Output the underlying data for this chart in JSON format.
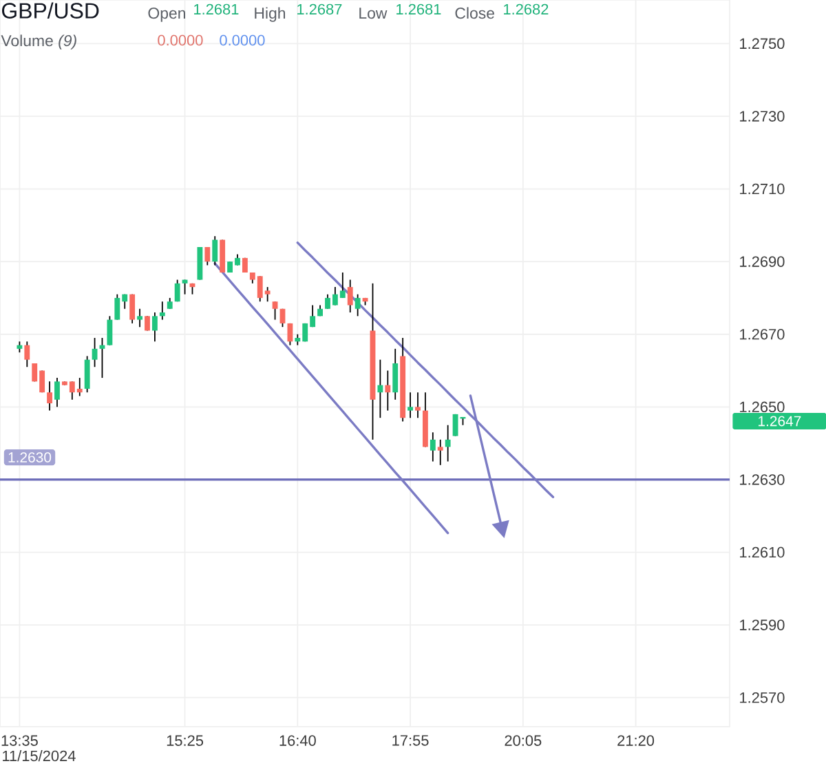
{
  "chart_data": {
    "type": "candlestick",
    "title": "GBP/USD",
    "categories": [
      "13:35",
      null,
      null,
      null,
      null,
      null,
      null,
      null,
      null,
      null,
      null,
      null,
      null,
      null,
      null,
      null,
      null,
      null,
      null,
      null,
      null,
      null,
      "15:25",
      null,
      null,
      null,
      null,
      null,
      null,
      null,
      null,
      null,
      null,
      null,
      null,
      null,
      null,
      "16:40",
      null,
      null,
      null,
      null,
      null,
      null,
      null,
      null,
      null,
      null,
      null,
      null,
      null,
      null,
      "17:55",
      null,
      null,
      null,
      null,
      null,
      null,
      null,
      null,
      null,
      null,
      null,
      null,
      null,
      null,
      "20:05",
      null,
      null,
      null,
      null,
      null,
      null,
      null,
      null,
      null,
      null,
      null,
      null,
      null,
      null,
      "21:20",
      null,
      null,
      null,
      null,
      null,
      null,
      null,
      null,
      null,
      null,
      null,
      null
    ],
    "ohlc": [
      [
        1.2666,
        1.2668,
        1.2665,
        1.2667
      ],
      [
        1.2667,
        1.2668,
        1.2661,
        1.2663
      ],
      [
        1.2662,
        1.2662,
        1.2657,
        1.2657
      ],
      [
        1.266,
        1.266,
        1.2654,
        1.2654
      ],
      [
        1.2654,
        1.2657,
        1.2649,
        1.2651
      ],
      [
        1.2652,
        1.2658,
        1.265,
        1.2657
      ],
      [
        1.2657,
        1.2657,
        1.2656,
        1.2656
      ],
      [
        1.2657,
        1.2657,
        1.2652,
        1.2654
      ],
      [
        1.2655,
        1.2658,
        1.2653,
        1.2654
      ],
      [
        1.2655,
        1.2664,
        1.2654,
        1.2663
      ],
      [
        1.2663,
        1.2669,
        1.2661,
        1.2666
      ],
      [
        1.2666,
        1.2669,
        1.2658,
        1.2667
      ],
      [
        1.2667,
        1.2675,
        1.2667,
        1.2674
      ],
      [
        1.2674,
        1.2681,
        1.2674,
        1.268
      ],
      [
        1.2679,
        1.2681,
        1.2677,
        1.2681
      ],
      [
        1.2681,
        1.2681,
        1.2673,
        1.2674
      ],
      [
        1.2674,
        1.2677,
        1.2672,
        1.2675
      ],
      [
        1.2675,
        1.2675,
        1.2671,
        1.2671
      ],
      [
        1.2671,
        1.2676,
        1.2668,
        1.2675
      ],
      [
        1.2675,
        1.2679,
        1.2674,
        1.2676
      ],
      [
        1.2677,
        1.268,
        1.2677,
        1.2679
      ],
      [
        1.2679,
        1.2685,
        1.2679,
        1.2684
      ],
      [
        1.2684,
        1.2685,
        1.2681,
        1.2685
      ],
      [
        1.2684,
        1.2684,
        1.2681,
        1.2683
      ],
      [
        1.2685,
        1.2694,
        1.2685,
        1.2694
      ],
      [
        1.2694,
        1.2694,
        1.2689,
        1.269
      ],
      [
        1.269,
        1.2697,
        1.2689,
        1.2696
      ],
      [
        1.2696,
        1.2696,
        1.2687,
        1.2687
      ],
      [
        1.2687,
        1.269,
        1.2687,
        1.269
      ],
      [
        1.2689,
        1.2692,
        1.2689,
        1.2691
      ],
      [
        1.2691,
        1.2691,
        1.2687,
        1.2687
      ],
      [
        1.2687,
        1.2687,
        1.2684,
        1.2685
      ],
      [
        1.2686,
        1.2686,
        1.2679,
        1.268
      ],
      [
        1.2682,
        1.2683,
        1.2679,
        1.2681
      ],
      [
        1.2679,
        1.2679,
        1.2674,
        1.2677
      ],
      [
        1.2677,
        1.2677,
        1.2672,
        1.2673
      ],
      [
        1.2673,
        1.2673,
        1.2667,
        1.2668
      ],
      [
        1.2668,
        1.267,
        1.2667,
        1.2669
      ],
      [
        1.2668,
        1.2673,
        1.2668,
        1.2673
      ],
      [
        1.2672,
        1.2678,
        1.2672,
        1.2675
      ],
      [
        1.2675,
        1.2678,
        1.2675,
        1.2677
      ],
      [
        1.2677,
        1.2681,
        1.2677,
        1.268
      ],
      [
        1.2678,
        1.2683,
        1.2678,
        1.2681
      ],
      [
        1.268,
        1.2687,
        1.268,
        1.2682
      ],
      [
        1.2683,
        1.2685,
        1.2676,
        1.2678
      ],
      [
        1.2677,
        1.2681,
        1.2675,
        1.268
      ],
      [
        1.268,
        1.268,
        1.2678,
        1.2679
      ],
      [
        1.2671,
        1.2684,
        1.2641,
        1.2652
      ],
      [
        1.2654,
        1.2663,
        1.2647,
        1.2656
      ],
      [
        1.2656,
        1.266,
        1.2649,
        1.2654
      ],
      [
        1.2654,
        1.2666,
        1.2652,
        1.2662
      ],
      [
        1.2664,
        1.2669,
        1.2646,
        1.2647
      ],
      [
        1.2649,
        1.2654,
        1.2647,
        1.265
      ],
      [
        1.265,
        1.2654,
        1.2647,
        1.2649
      ],
      [
        1.2649,
        1.2654,
        1.2639,
        1.2639
      ],
      [
        1.2638,
        1.2643,
        1.2635,
        1.2641
      ],
      [
        1.2639,
        1.2641,
        1.2634,
        1.2638
      ],
      [
        1.2639,
        1.2645,
        1.2635,
        1.2641
      ],
      [
        1.2642,
        1.2648,
        1.2642,
        1.2648
      ],
      [
        1.2647,
        1.2647,
        1.2645,
        1.2647
      ],
      null,
      null,
      null,
      null,
      null,
      null,
      null,
      null,
      null,
      null,
      null,
      null,
      null,
      null,
      null,
      null,
      null,
      null,
      null,
      null,
      null,
      null,
      null,
      null,
      null,
      null,
      null,
      null,
      null,
      null,
      null,
      null,
      null,
      null,
      null
    ],
    "colors": [
      "#21c47e",
      "#f86a5f",
      "#f86a5f",
      "#f86a5f",
      "#f86a5f",
      "#21c47e",
      "#f86a5f",
      "#f86a5f",
      "#f86a5f",
      "#21c47e",
      "#21c47e",
      "#21c47e",
      "#21c47e",
      "#21c47e",
      "#21c47e",
      "#f86a5f",
      "#21c47e",
      "#f86a5f",
      "#21c47e",
      "#21c47e",
      "#21c47e",
      "#21c47e",
      "#21c47e",
      "#f86a5f",
      "#21c47e",
      "#f86a5f",
      "#21c47e",
      "#f86a5f",
      "#21c47e",
      "#21c47e",
      "#f86a5f",
      "#f86a5f",
      "#f86a5f",
      "#f86a5f",
      "#f86a5f",
      "#f86a5f",
      "#f86a5f",
      "#21c47e",
      "#21c47e",
      "#21c47e",
      "#21c47e",
      "#21c47e",
      "#21c47e",
      "#21c47e",
      "#f86a5f",
      "#21c47e",
      "#f86a5f",
      "#f86a5f",
      "#21c47e",
      "#f86a5f",
      "#21c47e",
      "#f86a5f",
      "#21c47e",
      "#f86a5f",
      "#f86a5f",
      "#21c47e",
      "#f86a5f",
      "#21c47e",
      "#21c47e",
      "#21c47e",
      null,
      null,
      null,
      null,
      null,
      null,
      null,
      null,
      null,
      null,
      null,
      null,
      null,
      null,
      null,
      null,
      null,
      null,
      null,
      null,
      null,
      null,
      null,
      null,
      null,
      null,
      null,
      null,
      null,
      null,
      null,
      null,
      null,
      null,
      null
    ],
    "series": [
      {
        "type": "line",
        "color": "#7b7bc4",
        "values": [
          null,
          null,
          null,
          null,
          null,
          null,
          null,
          null,
          null,
          null,
          null,
          null,
          null,
          null,
          null,
          null,
          null,
          null,
          null,
          null,
          null,
          null,
          null,
          null,
          null,
          null,
          null,
          null,
          null,
          null,
          null,
          null,
          null,
          null,
          null,
          null,
          null,
          1.26952,
          1.26931,
          1.26911,
          1.2689,
          1.26869,
          1.26849,
          1.26828,
          1.26808,
          1.26787,
          1.26766,
          1.26746,
          1.26725,
          1.26705,
          1.26684,
          1.26664,
          1.26643,
          1.26622,
          1.26602,
          1.26581,
          1.26561,
          1.2654,
          1.26519,
          1.26499,
          1.26478,
          1.26458,
          1.26437,
          1.26416,
          1.26396,
          1.26375,
          1.26355,
          1.26334,
          1.26314,
          1.26293,
          1.26272,
          1.26252,
          null,
          null,
          null,
          null,
          null,
          null,
          null,
          null,
          null,
          null,
          null,
          null,
          null,
          null,
          null,
          null,
          null,
          null,
          null,
          null,
          null,
          null,
          null
        ]
      },
      {
        "type": "line",
        "color": "#7b7bc4",
        "values": [
          null,
          null,
          null,
          null,
          null,
          null,
          null,
          null,
          null,
          null,
          null,
          null,
          null,
          null,
          null,
          null,
          null,
          null,
          null,
          null,
          null,
          null,
          null,
          null,
          null,
          null,
          1.26895,
          1.26871,
          1.26847,
          1.26823,
          1.26799,
          1.26775,
          1.26752,
          1.26728,
          1.26704,
          1.2668,
          1.26656,
          1.26632,
          1.26608,
          1.26584,
          1.2656,
          1.26536,
          1.26512,
          1.26488,
          1.26464,
          1.2644,
          1.26416,
          1.26392,
          1.26368,
          1.26344,
          1.2632,
          1.26297,
          1.26273,
          1.26249,
          1.26225,
          1.26201,
          1.26177,
          1.26153,
          null,
          null,
          null,
          null,
          null,
          null,
          null,
          null,
          null,
          null,
          null,
          null,
          null,
          null,
          null,
          null,
          null,
          null,
          null,
          null,
          null,
          null,
          null,
          null,
          null,
          null,
          null,
          null,
          null,
          null,
          null,
          null,
          null,
          null,
          null,
          null,
          null
        ]
      },
      {
        "type": "line",
        "color": "#7b7bc4",
        "values": [
          null,
          null,
          null,
          null,
          null,
          null,
          null,
          null,
          null,
          null,
          null,
          null,
          null,
          null,
          null,
          null,
          null,
          null,
          null,
          null,
          null,
          null,
          null,
          null,
          null,
          null,
          null,
          null,
          null,
          null,
          null,
          null,
          null,
          null,
          null,
          null,
          null,
          null,
          null,
          null,
          null,
          null,
          null,
          null,
          null,
          null,
          null,
          null,
          null,
          null,
          null,
          null,
          null,
          null,
          null,
          null,
          null,
          null,
          null,
          null,
          1.26531,
          1.26444,
          1.26357,
          1.2627,
          1.26183,
          null,
          null,
          null,
          null,
          null,
          null,
          null,
          null,
          null,
          null,
          null,
          null,
          null,
          null,
          null,
          null,
          null,
          null,
          null,
          null,
          null,
          null,
          null,
          null,
          null,
          null,
          null,
          null,
          null,
          null
        ]
      }
    ],
    "ref_lines": [
      {
        "axis": "y",
        "value": 1.263,
        "label": "1.2630",
        "color": "#6b6bb8"
      }
    ],
    "ylim": [
      1.2562,
      1.2762
    ],
    "yticks": [
      {
        "value": 1.257,
        "label": "1.2570"
      },
      {
        "value": 1.259,
        "label": "1.2590"
      },
      {
        "value": 1.261,
        "label": "1.2610"
      },
      {
        "value": 1.263,
        "label": "1.2630"
      },
      {
        "value": 1.265,
        "label": "1.2650"
      },
      {
        "value": 1.267,
        "label": "1.2670"
      },
      {
        "value": 1.269,
        "label": "1.2690"
      },
      {
        "value": 1.271,
        "label": "1.2710"
      },
      {
        "value": 1.273,
        "label": "1.2730"
      },
      {
        "value": 1.275,
        "label": "1.2750"
      }
    ],
    "grid": true,
    "annotations": [
      "Open",
      "1.2681",
      "High",
      "1.2687",
      "Low",
      "1.2681",
      "Close",
      "1.2682",
      "Volume *(9)*",
      "0.0000",
      "0.0000",
      "11/15/2024",
      "1.2647"
    ]
  }
}
